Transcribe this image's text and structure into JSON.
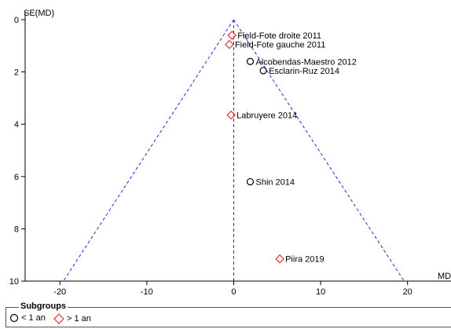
{
  "chart_data": {
    "type": "scatter",
    "title": "",
    "xlabel": "MD",
    "ylabel": "SE(MD)",
    "xlim": [
      -24,
      25
    ],
    "ylim": [
      0,
      10
    ],
    "y_reversed": true,
    "x_ticks": [
      -20,
      -10,
      0,
      10,
      20
    ],
    "y_ticks": [
      0,
      2,
      4,
      6,
      8,
      10
    ],
    "funnel": {
      "apex_x": 0,
      "apex_y": 0,
      "base_left": -19.6,
      "base_right": 19.6,
      "base_y": 10,
      "center_line_x": 0
    },
    "series": [
      {
        "name": "< 1 an",
        "marker": "circle",
        "color": "#000000",
        "points": [
          {
            "label": "Alcobendas-Maestro 2012",
            "x": 1.9,
            "y": 1.6
          },
          {
            "label": "Esclarin-Ruz 2014",
            "x": 3.4,
            "y": 1.95
          },
          {
            "label": "Shin 2014",
            "x": 1.9,
            "y": 6.2
          }
        ]
      },
      {
        "name": "> 1 an",
        "marker": "diamond",
        "color": "#e03030",
        "points": [
          {
            "label": "Field-Fote droite 2011",
            "x": -0.2,
            "y": 0.6
          },
          {
            "label": "Field-Fote gauche 2011",
            "x": -0.5,
            "y": 0.95
          },
          {
            "label": "Labruyere 2014",
            "x": -0.3,
            "y": 3.65
          },
          {
            "label": "Piira 2019",
            "x": 5.3,
            "y": 9.15
          }
        ]
      }
    ],
    "legend": {
      "title": "Subgroups",
      "position": "bottom"
    },
    "grid": false
  },
  "line_color": "#2b2bd9"
}
